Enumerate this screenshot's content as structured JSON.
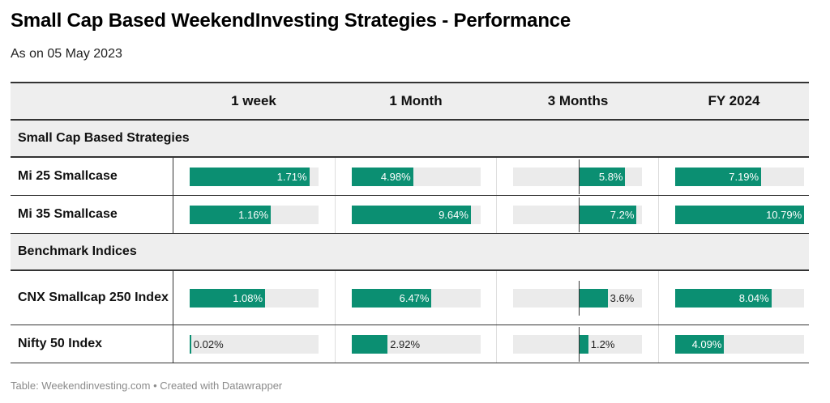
{
  "title": "Small Cap Based WeekendInvesting Strategies - Performance",
  "subtitle": "As on 05 May 2023",
  "footer": "Table: Weekendinvesting.com • Created with Datawrapper",
  "colors": {
    "bar": "#0b8f72",
    "track": "#ebebeb",
    "header_bg": "#eeeeee"
  },
  "chart_data": {
    "type": "table",
    "columns": [
      "1 week",
      "1 Month",
      "3 Months",
      "FY 2024"
    ],
    "groups": [
      {
        "name": "Small Cap Based Strategies",
        "rows": [
          {
            "label": "Mi 25 Smallcase",
            "values": [
              1.71,
              4.98,
              5.8,
              7.19
            ],
            "display": [
              "1.71%",
              "4.98%",
              "5.8%",
              "7.19%"
            ]
          },
          {
            "label": "Mi 35 Smallcase",
            "values": [
              1.16,
              9.64,
              7.2,
              10.79
            ],
            "display": [
              "1.16%",
              "9.64%",
              "7.2%",
              "10.79%"
            ]
          }
        ]
      },
      {
        "name": "Benchmark Indices",
        "rows": [
          {
            "label": "CNX Smallcap 250 Index",
            "values": [
              1.08,
              6.47,
              3.6,
              8.04
            ],
            "display": [
              "1.08%",
              "6.47%",
              "3.6%",
              "8.04%"
            ]
          },
          {
            "label": "Nifty 50 Index",
            "values": [
              0.02,
              2.92,
              1.2,
              4.09
            ],
            "display": [
              "0.02%",
              "2.92%",
              "1.2%",
              "4.09%"
            ]
          }
        ]
      }
    ]
  }
}
